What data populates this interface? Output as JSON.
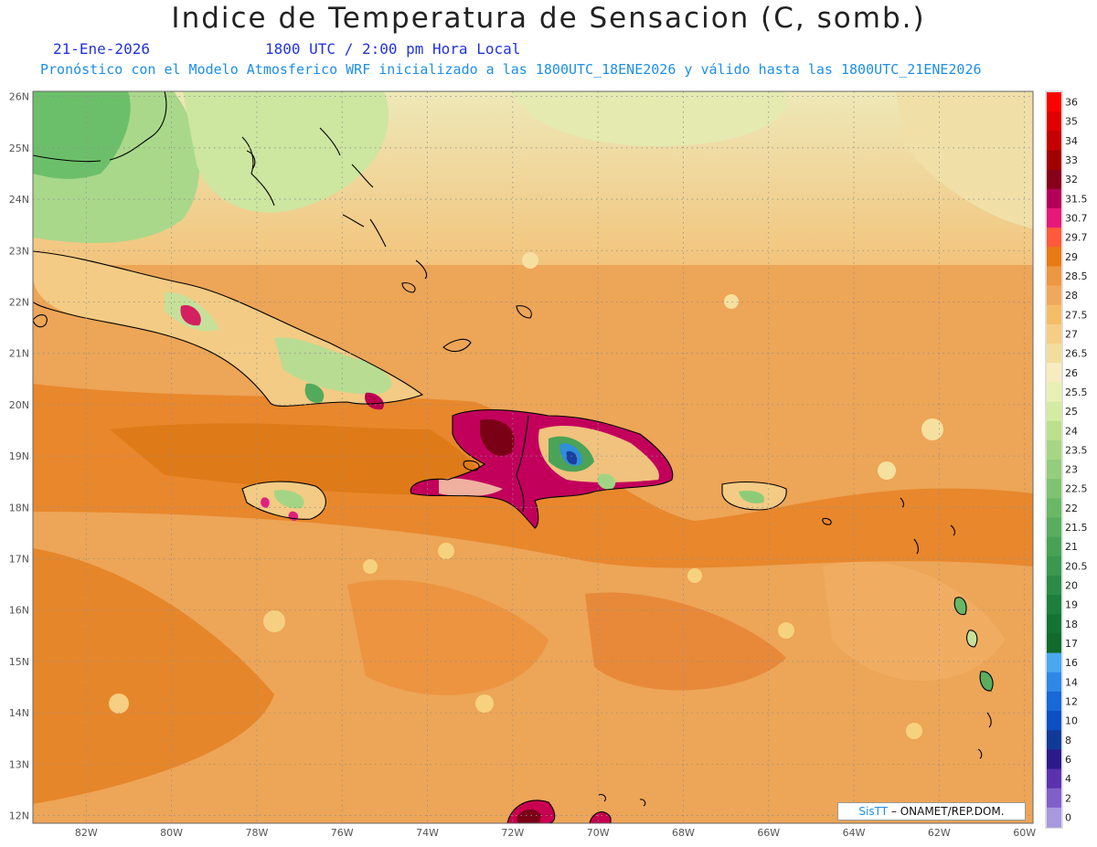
{
  "title": "Indice de Temperatura de Sensacion (C, somb.)",
  "date": "21-Ene-2026",
  "time": "1800 UTC / 2:00 pm Hora Local",
  "subtitle": "Pronóstico con el Modelo Atmosferico WRF inicializado a las 1800UTC_18ENE2026 y válido hasta las  1800UTC_21ENE2026",
  "credit": {
    "brand": "SisTT",
    "text": "– ONAMET/REP.DOM."
  },
  "map": {
    "lon_range": [
      -83.25,
      -59.8
    ],
    "lat_range": [
      11.85,
      26.1
    ],
    "lat_labels": [
      "26N",
      "25N",
      "24N",
      "23N",
      "22N",
      "21N",
      "20N",
      "19N",
      "18N",
      "17N",
      "16N",
      "15N",
      "14N",
      "13N",
      "12N"
    ],
    "lon_labels": [
      "82W",
      "80W",
      "78W",
      "76W",
      "74W",
      "72W",
      "70W",
      "68W",
      "66W",
      "64W",
      "62W",
      "60W"
    ],
    "grid": true,
    "colors": {
      "ocean": "#f2b266",
      "ocean_warm": "#ec9c4a",
      "ocean_hot": "#e07a1c",
      "north_pale": "#eee0b0",
      "coast": "#000000"
    }
  },
  "legend": {
    "labels": [
      "36",
      "35",
      "34",
      "33",
      "32",
      "31.5",
      "30.7",
      "29.7",
      "29",
      "28.5",
      "28",
      "27.5",
      "27",
      "26.5",
      "26",
      "25.5",
      "25",
      "24",
      "23.5",
      "23",
      "22.5",
      "22",
      "21.5",
      "21",
      "20.5",
      "20",
      "19",
      "18",
      "17",
      "16",
      "14",
      "12",
      "10",
      "8",
      "6",
      "4",
      "2",
      "0"
    ],
    "colors": [
      "#ff0000",
      "#e00000",
      "#c40000",
      "#a30000",
      "#88001a",
      "#b5005a",
      "#e8187a",
      "#ff5a3c",
      "#e87a14",
      "#ee9640",
      "#f2a85a",
      "#f5bc66",
      "#f6cd82",
      "#f3dd9c",
      "#f6ecc0",
      "#e8f0b4",
      "#d4eba2",
      "#bce08c",
      "#a6d682",
      "#94cd7c",
      "#7ec470",
      "#68b866",
      "#58ad5e",
      "#48a256",
      "#3a9850",
      "#2a8c46",
      "#1c803c",
      "#127434",
      "#0f6a2c",
      "#4aa8f0",
      "#2e88e6",
      "#1768d8",
      "#0a4fc4",
      "#103a98",
      "#2c1a8a",
      "#5a32b0",
      "#8060c8",
      "#a898e0"
    ]
  }
}
